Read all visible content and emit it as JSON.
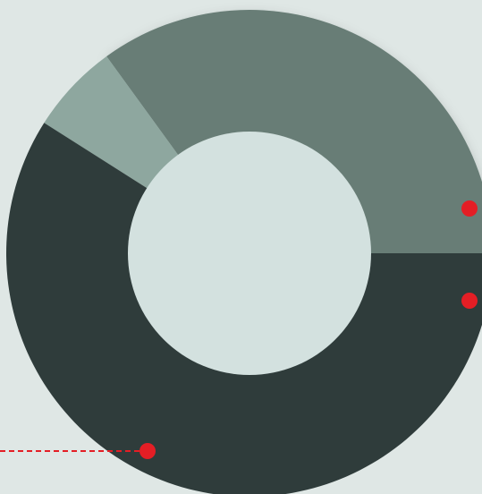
{
  "chart_data": {
    "type": "pie",
    "donut": true,
    "series": [
      {
        "value": 35,
        "color": "#687d76"
      },
      {
        "value": 6,
        "color": "#8ea79f"
      },
      {
        "value": 59,
        "color": "#2f3c3b"
      }
    ],
    "colors": {
      "background": "#dfe7e5",
      "donut_hole": "#d3e1df",
      "callout": "#e41e25"
    },
    "legend": "none",
    "grid": false
  }
}
